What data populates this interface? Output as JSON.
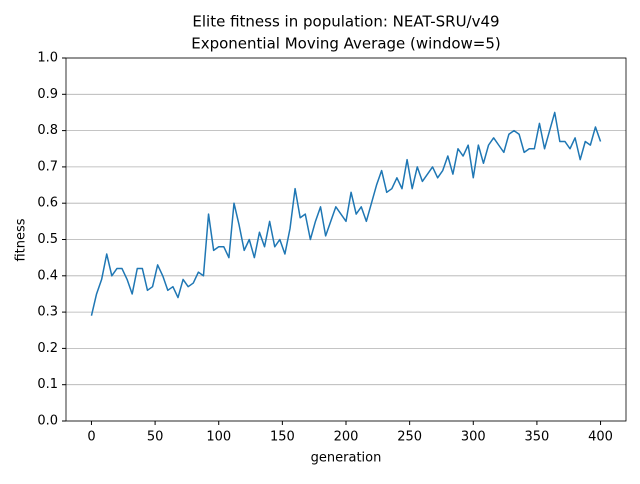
{
  "chart_data": {
    "type": "line",
    "title": "Elite fitness in population: NEAT-SRU/v49",
    "subtitle": "Exponential Moving Average (window=5)",
    "x_label": "generation",
    "y_label": "fitness",
    "x": [
      0,
      4,
      8,
      12,
      16,
      20,
      24,
      28,
      32,
      36,
      40,
      44,
      48,
      52,
      56,
      60,
      64,
      68,
      72,
      76,
      80,
      84,
      88,
      92,
      96,
      100,
      104,
      108,
      112,
      116,
      120,
      124,
      128,
      132,
      136,
      140,
      144,
      148,
      152,
      156,
      160,
      164,
      168,
      172,
      176,
      180,
      184,
      188,
      192,
      196,
      200,
      204,
      208,
      212,
      216,
      220,
      224,
      228,
      232,
      236,
      240,
      244,
      248,
      252,
      256,
      260,
      264,
      268,
      272,
      276,
      280,
      284,
      288,
      292,
      296,
      300,
      304,
      308,
      312,
      316,
      320,
      324,
      328,
      332,
      336,
      340,
      344,
      348,
      352,
      356,
      360,
      364,
      368,
      372,
      376,
      380,
      384,
      388,
      392,
      396,
      400
    ],
    "series": [
      {
        "name": "fitness",
        "color": "#1f77b4",
        "values": [
          0.29,
          0.35,
          0.39,
          0.46,
          0.4,
          0.42,
          0.42,
          0.39,
          0.35,
          0.42,
          0.42,
          0.36,
          0.37,
          0.43,
          0.4,
          0.36,
          0.37,
          0.34,
          0.39,
          0.37,
          0.38,
          0.41,
          0.4,
          0.57,
          0.47,
          0.48,
          0.48,
          0.45,
          0.6,
          0.54,
          0.47,
          0.5,
          0.45,
          0.52,
          0.48,
          0.55,
          0.48,
          0.5,
          0.46,
          0.53,
          0.64,
          0.56,
          0.57,
          0.5,
          0.55,
          0.59,
          0.51,
          0.55,
          0.59,
          0.57,
          0.55,
          0.63,
          0.57,
          0.59,
          0.55,
          0.6,
          0.65,
          0.69,
          0.63,
          0.64,
          0.67,
          0.64,
          0.72,
          0.64,
          0.7,
          0.66,
          0.68,
          0.7,
          0.67,
          0.69,
          0.73,
          0.68,
          0.75,
          0.73,
          0.76,
          0.67,
          0.76,
          0.71,
          0.76,
          0.78,
          0.76,
          0.74,
          0.79,
          0.8,
          0.79,
          0.74,
          0.75,
          0.75,
          0.82,
          0.75,
          0.8,
          0.85,
          0.77,
          0.77,
          0.75,
          0.78,
          0.72,
          0.77,
          0.76,
          0.81,
          0.77
        ]
      }
    ],
    "xlim": [
      -20,
      420
    ],
    "xticks": [
      0,
      50,
      100,
      150,
      200,
      250,
      300,
      350,
      400
    ],
    "ylim": [
      0,
      1
    ],
    "yticks": [
      {
        "value": 0,
        "label": "0.0"
      },
      0.1,
      0.2,
      0.3,
      0.4,
      0.5,
      0.6,
      0.7,
      0.8,
      0.9,
      {
        "value": 1,
        "label": "1.0"
      }
    ],
    "grid": "y"
  }
}
